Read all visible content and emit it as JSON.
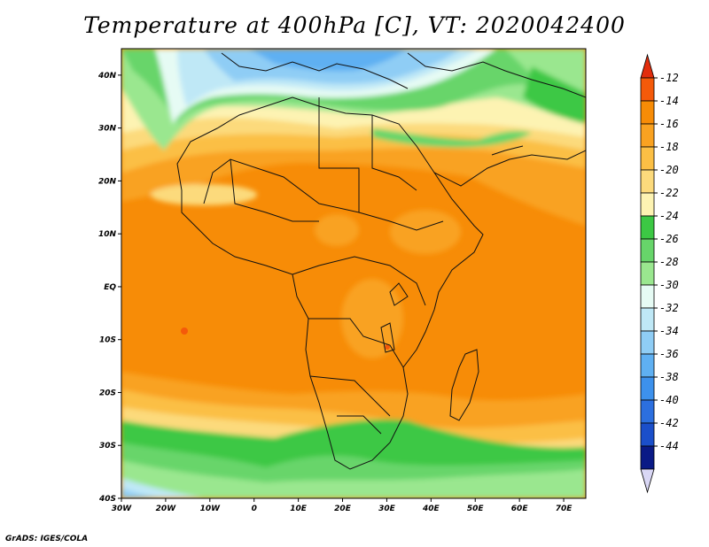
{
  "title": "Temperature at 400hPa [C], VT: 2020042400",
  "credit": "GrADS: IGES/COLA",
  "map": {
    "lon_range": [
      -30,
      75
    ],
    "lat_range": [
      -40,
      45
    ],
    "x_ticks": [
      "30W",
      "20W",
      "10W",
      "0",
      "10E",
      "20E",
      "30E",
      "40E",
      "50E",
      "60E",
      "70E"
    ],
    "y_ticks": [
      "40S",
      "30S",
      "20S",
      "10S",
      "EQ",
      "10N",
      "20N",
      "30N",
      "40N"
    ]
  },
  "colorbar": {
    "labels": [
      "-12",
      "-14",
      "-16",
      "-18",
      "-20",
      "-22",
      "-24",
      "-26",
      "-28",
      "-30",
      "-32",
      "-34",
      "-36",
      "-38",
      "-40",
      "-42",
      "-44"
    ],
    "colors": [
      "#f45a0a",
      "#f78c07",
      "#f9a221",
      "#fbbf45",
      "#fcda7c",
      "#fdf3b2",
      "#3cc844",
      "#67d56a",
      "#9ae78f",
      "#e6fbf4",
      "#bfe8f6",
      "#8fcdf5",
      "#5fb0f2",
      "#3d91ec",
      "#2c6fdf",
      "#1b4fca",
      "#0a1a86"
    ]
  }
}
